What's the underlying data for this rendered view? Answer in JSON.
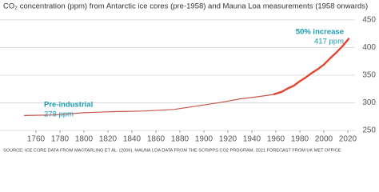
{
  "chart_data": {
    "type": "line",
    "title": "CO₂ concentration (ppm) from Antarctic ice cores (pre-1958) and Mauna Loa measurements (1958 onwards)",
    "source": "SOURCE: ICE CORE DATA FROM MACFARLING ET AL. (2006), MAUNA LOA DATA FROM THE SCRIPPS CO2 PROGRAM, 2021 FORECAST FROM UK MET OFFICE",
    "series": [
      {
        "color": "#c8564a",
        "x": [
          1750,
          1775,
          1800,
          1825,
          1850,
          1875,
          1900,
          1915,
          1930,
          1945,
          1958
        ],
        "values": [
          277,
          278,
          282,
          284,
          285,
          288,
          296,
          301,
          307,
          311,
          315
        ]
      },
      {
        "color": "#e5452f",
        "x": [
          1958,
          1965,
          1970,
          1975,
          1980,
          1985,
          1990,
          1995,
          2000,
          2005,
          2010,
          2015,
          2020,
          2021
        ],
        "values": [
          315,
          320,
          326,
          331,
          339,
          346,
          354,
          361,
          369,
          380,
          390,
          401,
          414,
          417
        ]
      }
    ],
    "annotations": [
      {
        "title": "Pre-industrial",
        "text": "278 ppm"
      },
      {
        "title": "50% increase",
        "text": "417 ppm"
      }
    ],
    "xlim": [
      1748,
      2026
    ],
    "xticks": [
      1760,
      1780,
      1800,
      1820,
      1840,
      1860,
      1880,
      1900,
      1920,
      1940,
      1960,
      1980,
      2000,
      2020
    ],
    "ylim": [
      250,
      460
    ],
    "yticks": [
      250,
      300,
      350,
      400,
      450
    ],
    "grid": true
  }
}
